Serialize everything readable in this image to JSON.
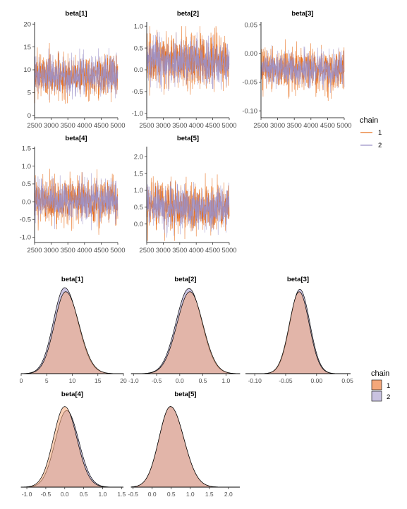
{
  "chart_data": [
    {
      "type": "line",
      "section": "traceplot",
      "series_names": [
        "1",
        "2"
      ],
      "colors": {
        "1": "#e8701e",
        "2": "#9b90c8"
      },
      "legend": {
        "title": "chain",
        "placement": "right",
        "labels": [
          "1",
          "2"
        ]
      },
      "x_range": [
        2500,
        5000
      ],
      "x_ticks": [
        2500,
        3000,
        3500,
        4000,
        4500,
        5000
      ],
      "x_tick_labels": [
        "2500",
        "3000",
        "3500",
        "4000",
        "4500",
        "5000"
      ],
      "panels": [
        {
          "title": "beta[1]",
          "ylim": [
            -0.5,
            20.5
          ],
          "y_ticks": [
            0,
            5,
            10,
            15,
            20
          ],
          "y_tick_labels": [
            "0",
            "5",
            "10",
            "15",
            "20"
          ],
          "mean": 8.7,
          "sd": 2.2,
          "y_min": 2.0,
          "y_max": 18.5
        },
        {
          "title": "beta[2]",
          "ylim": [
            -1.1,
            1.1
          ],
          "y_ticks": [
            -1.0,
            -0.5,
            0.0,
            0.5,
            1.0
          ],
          "y_tick_labels": [
            "-1.0",
            "-0.5",
            "0.0",
            "0.5",
            "1.0"
          ],
          "mean": 0.2,
          "sd": 0.28,
          "y_min": -1.05,
          "y_max": 1.0
        },
        {
          "title": "beta[3]",
          "ylim": [
            -0.112,
            0.055
          ],
          "y_ticks": [
            -0.1,
            -0.05,
            0.0,
            0.05
          ],
          "y_tick_labels": [
            "-0.10",
            "-0.05",
            "0.00",
            "0.05"
          ],
          "mean": -0.028,
          "sd": 0.016,
          "y_min": -0.105,
          "y_max": 0.05
        },
        {
          "title": "beta[4]",
          "ylim": [
            -1.15,
            1.55
          ],
          "y_ticks": [
            -1.0,
            -0.5,
            0.0,
            0.5,
            1.0,
            1.5
          ],
          "y_tick_labels": [
            "-1.0",
            "-0.5",
            "0.0",
            "0.5",
            "1.0",
            "1.5"
          ],
          "mean": 0.03,
          "sd": 0.3,
          "y_min": -1.1,
          "y_max": 1.4
        },
        {
          "title": "beta[5]",
          "ylim": [
            -0.55,
            2.3
          ],
          "y_ticks": [
            0.0,
            0.5,
            1.0,
            1.5,
            2.0
          ],
          "y_tick_labels": [
            "0.0",
            "0.5",
            "1.0",
            "1.5",
            "2.0"
          ],
          "mean": 0.5,
          "sd": 0.33,
          "y_min": -0.5,
          "y_max": 2.2
        }
      ]
    },
    {
      "type": "area",
      "section": "density",
      "series_names": [
        "1",
        "2"
      ],
      "colors": {
        "1": "#f4a77a",
        "2": "#c9c2e0",
        "overlap": "#b89090"
      },
      "legend": {
        "title": "chain",
        "placement": "right",
        "labels": [
          "1",
          "2"
        ]
      },
      "panels": [
        {
          "title": "beta[1]",
          "xlim": [
            0,
            20
          ],
          "x_ticks": [
            0,
            5,
            10,
            15,
            20
          ],
          "x_tick_labels": [
            "0",
            "5",
            "10",
            "15",
            "20"
          ],
          "mode": 8.7,
          "sd_left": 2.2,
          "sd_right": 2.6,
          "shift_2": -0.2,
          "peak_2": 1.05
        },
        {
          "title": "beta[2]",
          "xlim": [
            -1.05,
            1.3
          ],
          "x_ticks": [
            -1.0,
            -0.5,
            0.0,
            0.5,
            1.0
          ],
          "x_tick_labels": [
            "-1.0",
            "-0.5",
            "0.0",
            "0.5",
            "1.0"
          ],
          "mode": 0.22,
          "sd_left": 0.28,
          "sd_right": 0.28,
          "shift_2": -0.02,
          "peak_2": 1.04
        },
        {
          "title": "beta[3]",
          "xlim": [
            -0.115,
            0.055
          ],
          "x_ticks": [
            -0.1,
            -0.05,
            0.0,
            0.05
          ],
          "x_tick_labels": [
            "-0.10",
            "-0.05",
            "0.00",
            "0.05"
          ],
          "mode": -0.028,
          "sd_left": 0.016,
          "sd_right": 0.016,
          "shift_2": 0.001,
          "peak_2": 1.03
        },
        {
          "title": "beta[4]",
          "xlim": [
            -1.15,
            1.55
          ],
          "x_ticks": [
            -1.0,
            -0.5,
            0.0,
            0.5,
            1.0,
            1.5
          ],
          "x_tick_labels": [
            "-1.0",
            "-0.5",
            "0.0",
            "0.5",
            "1.0",
            "1.5"
          ],
          "mode": 0.0,
          "sd_left": 0.3,
          "sd_right": 0.32,
          "shift_2": 0.05,
          "peak_2": 0.95
        },
        {
          "title": "beta[5]",
          "xlim": [
            -0.55,
            2.3
          ],
          "x_ticks": [
            -0.5,
            0.0,
            0.5,
            1.0,
            1.5,
            2.0
          ],
          "x_tick_labels": [
            "-0.5",
            "0.0",
            "0.5",
            "1.0",
            "1.5",
            "2.0"
          ],
          "mode": 0.48,
          "sd_left": 0.3,
          "sd_right": 0.35,
          "shift_2": 0.0,
          "peak_2": 1.0
        }
      ]
    }
  ]
}
